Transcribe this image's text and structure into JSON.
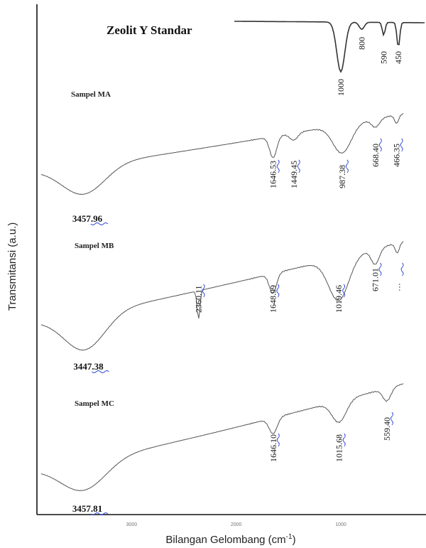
{
  "chart_data": {
    "type": "line",
    "ylabel": "Transmitansi (a.u.)",
    "xlabel": "Bilangan Gelombang (cm",
    "xlabel_sup": "-1",
    "xlabel_close": ")",
    "x_ticks": [
      {
        "value": 3000,
        "label": "3000"
      },
      {
        "value": 2000,
        "label": "2000"
      },
      {
        "value": 1000,
        "label": "1000"
      }
    ],
    "xlim": [
      4000,
      400
    ],
    "x_reversed": true,
    "series": [
      {
        "name": "Zeolit Y Standar",
        "peaks": [
          {
            "x": 1000,
            "label": "1000"
          },
          {
            "x": 800,
            "label": "800"
          },
          {
            "x": 590,
            "label": "590"
          },
          {
            "x": 450,
            "label": "450"
          }
        ]
      },
      {
        "name": "Sampel MA",
        "peaks": [
          {
            "x": 3457.96,
            "label": "3457.96"
          },
          {
            "x": 1646.53,
            "label": "1646.53"
          },
          {
            "x": 1449.45,
            "label": "1449.45"
          },
          {
            "x": 987.38,
            "label": "987.38"
          },
          {
            "x": 668.4,
            "label": "668.40"
          },
          {
            "x": 466.35,
            "label": "466.35"
          }
        ]
      },
      {
        "name": "Sampel MB",
        "peaks": [
          {
            "x": 3447.38,
            "label": "3447.38"
          },
          {
            "x": 2360.11,
            "label": "2360.11"
          },
          {
            "x": 1648.99,
            "label": "1648.99"
          },
          {
            "x": 1019.46,
            "label": "1019.46"
          },
          {
            "x": 671.01,
            "label": "671.01"
          },
          {
            "x": 460,
            "label": "…"
          }
        ]
      },
      {
        "name": "Sampel MC",
        "peaks": [
          {
            "x": 3457.81,
            "label": "3457.81"
          },
          {
            "x": 1646.1,
            "label": "1646.10"
          },
          {
            "x": 1015.68,
            "label": "1015.68"
          },
          {
            "x": 559.4,
            "label": "559.40"
          }
        ]
      }
    ],
    "grid": false,
    "legend": "none"
  }
}
